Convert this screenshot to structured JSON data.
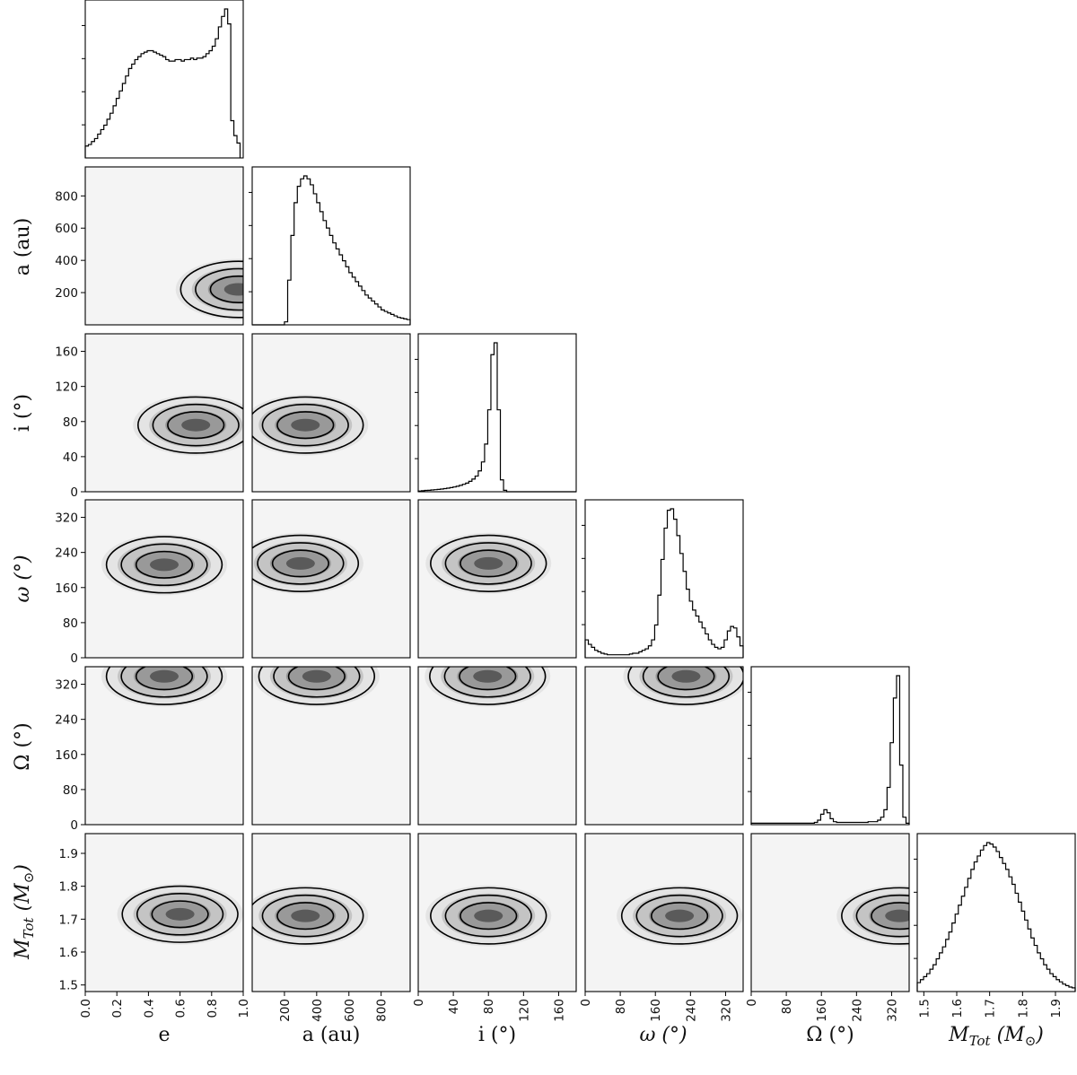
{
  "chart_data": {
    "type": "corner",
    "params": [
      {
        "id": "e",
        "label": "e",
        "range": [
          0.0,
          1.0
        ],
        "ticks": [
          0.0,
          0.2,
          0.4,
          0.6,
          0.8,
          1.0
        ],
        "tick_labels": [
          "0.0",
          "0.2",
          "0.4",
          "0.6",
          "0.8",
          "1.0"
        ]
      },
      {
        "id": "a",
        "label": "a (au)",
        "range": [
          0,
          980
        ],
        "ticks": [
          200,
          400,
          600,
          800
        ],
        "tick_labels": [
          "200",
          "400",
          "600",
          "800"
        ]
      },
      {
        "id": "i",
        "label": "i (°)",
        "range": [
          0,
          180
        ],
        "ticks": [
          0,
          40,
          80,
          120,
          160
        ],
        "tick_labels": [
          "0",
          "40",
          "80",
          "120",
          "160"
        ]
      },
      {
        "id": "omega",
        "label": "ω (°)",
        "range": [
          0,
          360
        ],
        "ticks": [
          0,
          80,
          160,
          240,
          320
        ],
        "tick_labels": [
          "0",
          "80",
          "160",
          "240",
          "320"
        ]
      },
      {
        "id": "Omega",
        "label": "Ω (°)",
        "range": [
          0,
          360
        ],
        "ticks": [
          0,
          80,
          160,
          240,
          320
        ],
        "tick_labels": [
          "0",
          "80",
          "160",
          "240",
          "320"
        ]
      },
      {
        "id": "Mtot",
        "label": "M_Tot (M_⊙)",
        "range": [
          1.48,
          1.96
        ],
        "ticks": [
          1.5,
          1.6,
          1.7,
          1.8,
          1.9
        ],
        "tick_labels": [
          "1.5",
          "1.6",
          "1.7",
          "1.8",
          "1.9"
        ]
      }
    ],
    "marginals": {
      "e": {
        "bin_edges_start": 0.0,
        "bin_width": 0.0196,
        "counts": [
          0.08,
          0.09,
          0.11,
          0.13,
          0.16,
          0.19,
          0.22,
          0.26,
          0.3,
          0.35,
          0.4,
          0.45,
          0.5,
          0.55,
          0.6,
          0.63,
          0.66,
          0.68,
          0.7,
          0.71,
          0.72,
          0.72,
          0.71,
          0.7,
          0.69,
          0.68,
          0.66,
          0.65,
          0.65,
          0.66,
          0.66,
          0.65,
          0.66,
          0.66,
          0.67,
          0.66,
          0.67,
          0.67,
          0.68,
          0.7,
          0.72,
          0.75,
          0.8,
          0.88,
          0.95,
          1.0,
          0.9,
          0.25,
          0.15,
          0.1
        ]
      },
      "a": {
        "bin_edges_start": 0,
        "bin_width": 20,
        "counts": [
          0,
          0,
          0,
          0,
          0,
          0,
          0,
          0,
          0,
          0,
          0.02,
          0.3,
          0.6,
          0.82,
          0.93,
          0.98,
          1.0,
          0.98,
          0.94,
          0.88,
          0.82,
          0.76,
          0.7,
          0.65,
          0.6,
          0.55,
          0.51,
          0.47,
          0.43,
          0.39,
          0.35,
          0.32,
          0.29,
          0.26,
          0.23,
          0.2,
          0.18,
          0.16,
          0.14,
          0.12,
          0.1,
          0.09,
          0.08,
          0.07,
          0.06,
          0.05,
          0.045,
          0.04,
          0.035
        ]
      },
      "i": {
        "bin_edges_start": 0,
        "bin_width": 3.6,
        "counts": [
          0.005,
          0.007,
          0.009,
          0.01,
          0.012,
          0.014,
          0.016,
          0.018,
          0.021,
          0.024,
          0.028,
          0.032,
          0.037,
          0.043,
          0.05,
          0.058,
          0.07,
          0.085,
          0.105,
          0.14,
          0.2,
          0.32,
          0.55,
          0.92,
          1.0,
          0.55,
          0.08,
          0.01,
          0,
          0,
          0,
          0,
          0,
          0,
          0,
          0,
          0,
          0,
          0,
          0,
          0,
          0,
          0,
          0,
          0,
          0,
          0,
          0,
          0,
          0
        ]
      },
      "omega": {
        "bin_edges_start": 0,
        "bin_width": 7.2,
        "counts": [
          0.12,
          0.09,
          0.07,
          0.05,
          0.04,
          0.03,
          0.025,
          0.02,
          0.02,
          0.02,
          0.02,
          0.02,
          0.02,
          0.02,
          0.025,
          0.03,
          0.03,
          0.04,
          0.05,
          0.06,
          0.08,
          0.12,
          0.22,
          0.42,
          0.66,
          0.87,
          0.99,
          1.0,
          0.93,
          0.82,
          0.7,
          0.58,
          0.46,
          0.38,
          0.32,
          0.28,
          0.24,
          0.2,
          0.16,
          0.12,
          0.09,
          0.07,
          0.06,
          0.07,
          0.12,
          0.18,
          0.21,
          0.2,
          0.14,
          0.08
        ]
      },
      "Omega": {
        "bin_edges_start": 0,
        "bin_width": 7.2,
        "counts": [
          0.01,
          0.01,
          0.01,
          0.01,
          0.01,
          0.01,
          0.01,
          0.01,
          0.01,
          0.01,
          0.01,
          0.01,
          0.01,
          0.01,
          0.01,
          0.01,
          0.01,
          0.01,
          0.01,
          0.01,
          0.015,
          0.03,
          0.07,
          0.1,
          0.08,
          0.04,
          0.02,
          0.015,
          0.015,
          0.015,
          0.015,
          0.015,
          0.015,
          0.015,
          0.015,
          0.015,
          0.015,
          0.02,
          0.02,
          0.02,
          0.03,
          0.05,
          0.1,
          0.25,
          0.55,
          0.85,
          1.0,
          0.4,
          0.05,
          0.01
        ]
      },
      "Mtot": {
        "bin_edges_start": 1.48,
        "bin_width": 0.0096,
        "counts": [
          0.06,
          0.08,
          0.1,
          0.12,
          0.15,
          0.18,
          0.22,
          0.26,
          0.3,
          0.35,
          0.4,
          0.46,
          0.52,
          0.58,
          0.64,
          0.7,
          0.76,
          0.82,
          0.87,
          0.91,
          0.95,
          0.98,
          1.0,
          0.99,
          0.97,
          0.94,
          0.9,
          0.86,
          0.82,
          0.77,
          0.72,
          0.66,
          0.6,
          0.54,
          0.48,
          0.42,
          0.36,
          0.31,
          0.26,
          0.22,
          0.18,
          0.15,
          0.12,
          0.1,
          0.08,
          0.065,
          0.05,
          0.04,
          0.03,
          0.025
        ]
      }
    },
    "joint_modes": {
      "a|e": {
        "cx": 0.97,
        "cy": 220
      },
      "i|e": {
        "cx": 0.7,
        "cy": 76
      },
      "i|a": {
        "cx": 330,
        "cy": 76
      },
      "omega|e": {
        "cx": 0.5,
        "cy": 212
      },
      "omega|a": {
        "cx": 300,
        "cy": 215
      },
      "omega|i": {
        "cx": 80,
        "cy": 215
      },
      "Omega|e": {
        "cx": 0.5,
        "cy": 338
      },
      "Omega|a": {
        "cx": 400,
        "cy": 338
      },
      "Omega|i": {
        "cx": 79,
        "cy": 338
      },
      "Omega|omega": {
        "cx": 230,
        "cy": 338
      },
      "Mtot|e": {
        "cx": 0.6,
        "cy": 1.715
      },
      "Mtot|a": {
        "cx": 330,
        "cy": 1.71
      },
      "Mtot|i": {
        "cx": 80,
        "cy": 1.71
      },
      "Mtot|omega": {
        "cx": 215,
        "cy": 1.71
      },
      "Mtot|Omega": {
        "cx": 338,
        "cy": 1.71
      }
    }
  }
}
